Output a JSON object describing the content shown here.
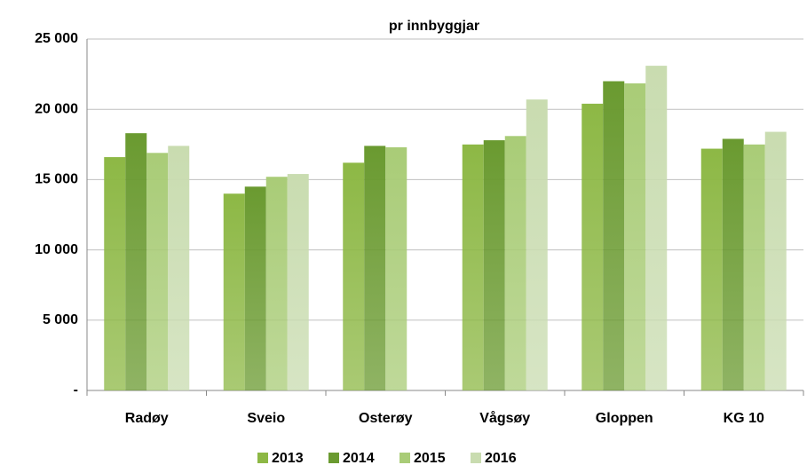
{
  "chart_data": {
    "type": "bar",
    "subtitle": "pr innbyggjar",
    "categories": [
      "Radøy",
      "Sveio",
      "Osterøy",
      "Vågsøy",
      "Gloppen",
      "KG 10"
    ],
    "series": [
      {
        "name": "2013",
        "color": "#8db845",
        "values": [
          16600,
          14000,
          16200,
          17500,
          20400,
          17200
        ]
      },
      {
        "name": "2014",
        "color": "#6a9a30",
        "values": [
          18300,
          14500,
          17400,
          17800,
          22000,
          17900
        ]
      },
      {
        "name": "2015",
        "color": "#a9cc77",
        "values": [
          16900,
          15200,
          17300,
          18100,
          21850,
          17500
        ]
      },
      {
        "name": "2016",
        "color": "#c9dcb0",
        "values": [
          17400,
          15400,
          null,
          20700,
          23100,
          18400
        ]
      }
    ],
    "ylim": [
      0,
      25000
    ],
    "yticks": [
      {
        "value": 0,
        "label": "-"
      },
      {
        "value": 5000,
        "label": "5 000"
      },
      {
        "value": 10000,
        "label": "10 000"
      },
      {
        "value": 15000,
        "label": "15 000"
      },
      {
        "value": 20000,
        "label": "20 000"
      },
      {
        "value": 25000,
        "label": "25 000"
      }
    ],
    "grid": true,
    "legend": "bottom"
  }
}
